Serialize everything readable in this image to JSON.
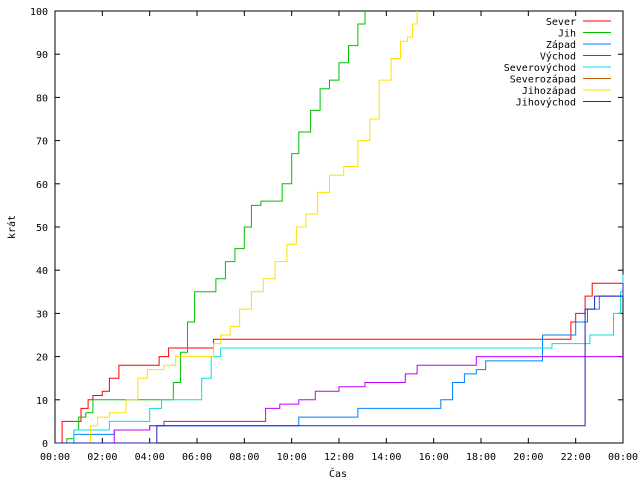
{
  "chart_data": {
    "type": "line",
    "title": "",
    "xlabel": "Čas",
    "ylabel": "krát",
    "xlim": [
      0,
      24
    ],
    "ylim": [
      0,
      100
    ],
    "grid": false,
    "legend_position": "top-right",
    "x_tick_labels": [
      "00:00",
      "02:00",
      "04:00",
      "06:00",
      "08:00",
      "10:00",
      "12:00",
      "14:00",
      "16:00",
      "18:00",
      "20:00",
      "22:00",
      "00:00"
    ],
    "y_tick_labels": [
      "0",
      "10",
      "20",
      "30",
      "40",
      "50",
      "60",
      "70",
      "80",
      "90",
      "100"
    ],
    "series": [
      {
        "name": "Sever",
        "color": "#ff0000",
        "points": [
          [
            0,
            0
          ],
          [
            0.3,
            5
          ],
          [
            0.9,
            5
          ],
          [
            1.1,
            8
          ],
          [
            1.4,
            10
          ],
          [
            1.6,
            11
          ],
          [
            2.0,
            12
          ],
          [
            2.3,
            15
          ],
          [
            2.7,
            18
          ],
          [
            4.2,
            18
          ],
          [
            4.4,
            20
          ],
          [
            4.8,
            22
          ],
          [
            6.5,
            22
          ],
          [
            6.7,
            24
          ],
          [
            21.5,
            24
          ],
          [
            21.8,
            28
          ],
          [
            22.0,
            30
          ],
          [
            22.4,
            34
          ],
          [
            22.7,
            37
          ],
          [
            23.7,
            37
          ],
          [
            24,
            39
          ]
        ]
      },
      {
        "name": "Jih",
        "color": "#00c000",
        "points": [
          [
            0,
            0
          ],
          [
            0.5,
            1
          ],
          [
            0.8,
            3
          ],
          [
            1.0,
            6
          ],
          [
            1.3,
            7
          ],
          [
            1.6,
            10
          ],
          [
            2.3,
            10
          ],
          [
            4.8,
            10
          ],
          [
            5.0,
            14
          ],
          [
            5.3,
            21
          ],
          [
            5.6,
            28
          ],
          [
            5.9,
            35
          ],
          [
            6.4,
            35
          ],
          [
            6.8,
            38
          ],
          [
            7.2,
            42
          ],
          [
            7.6,
            45
          ],
          [
            8.0,
            50
          ],
          [
            8.3,
            55
          ],
          [
            8.7,
            56
          ],
          [
            9.1,
            56
          ],
          [
            9.6,
            60
          ],
          [
            10.0,
            67
          ],
          [
            10.3,
            72
          ],
          [
            10.8,
            77
          ],
          [
            11.2,
            82
          ],
          [
            11.6,
            84
          ],
          [
            12.0,
            88
          ],
          [
            12.4,
            92
          ],
          [
            12.8,
            97
          ],
          [
            13.1,
            100
          ]
        ]
      },
      {
        "name": "Západ",
        "color": "#0080ff",
        "points": [
          [
            0,
            0
          ],
          [
            0.6,
            0
          ],
          [
            0.8,
            2
          ],
          [
            1.7,
            2
          ],
          [
            2.5,
            3
          ],
          [
            3.5,
            3
          ],
          [
            4.0,
            4
          ],
          [
            9.8,
            4
          ],
          [
            10.3,
            6
          ],
          [
            12.3,
            6
          ],
          [
            12.8,
            8
          ],
          [
            16.0,
            8
          ],
          [
            16.3,
            10
          ],
          [
            16.8,
            14
          ],
          [
            17.3,
            16
          ],
          [
            17.8,
            17
          ],
          [
            18.2,
            19
          ],
          [
            20.2,
            19
          ],
          [
            20.6,
            25
          ],
          [
            21.7,
            25
          ],
          [
            22.0,
            28
          ],
          [
            22.5,
            31
          ],
          [
            23.0,
            34
          ],
          [
            24,
            34
          ]
        ]
      },
      {
        "name": "Východ",
        "color": "#c000ff",
        "points": [
          [
            0,
            0
          ],
          [
            2.2,
            0
          ],
          [
            2.5,
            3
          ],
          [
            4.0,
            4
          ],
          [
            4.6,
            5
          ],
          [
            8.6,
            5
          ],
          [
            8.9,
            8
          ],
          [
            9.5,
            9
          ],
          [
            10.3,
            10
          ],
          [
            11.0,
            12
          ],
          [
            12.0,
            13
          ],
          [
            13.1,
            14
          ],
          [
            14.5,
            14
          ],
          [
            14.8,
            16
          ],
          [
            15.3,
            18
          ],
          [
            17.5,
            18
          ],
          [
            17.8,
            20
          ],
          [
            24,
            20
          ]
        ]
      },
      {
        "name": "Severovýchod",
        "color": "#00e0e0",
        "points": [
          [
            0,
            0
          ],
          [
            0.4,
            0
          ],
          [
            0.8,
            3
          ],
          [
            1.8,
            3
          ],
          [
            2.3,
            5
          ],
          [
            3.5,
            5
          ],
          [
            4.0,
            8
          ],
          [
            4.5,
            10
          ],
          [
            5.9,
            10
          ],
          [
            6.2,
            15
          ],
          [
            6.6,
            20
          ],
          [
            7.0,
            22
          ],
          [
            20.6,
            22
          ],
          [
            21.0,
            23
          ],
          [
            22.3,
            23
          ],
          [
            22.6,
            25
          ],
          [
            23.2,
            25
          ],
          [
            23.6,
            30
          ],
          [
            23.9,
            35
          ],
          [
            24,
            39
          ]
        ]
      },
      {
        "name": "Severozápad",
        "color": "#c06000",
        "points": []
      },
      {
        "name": "Jihozápad",
        "color": "#ffe000",
        "points": [
          [
            0,
            0
          ],
          [
            1.2,
            0
          ],
          [
            1.5,
            4
          ],
          [
            1.8,
            6
          ],
          [
            2.3,
            7
          ],
          [
            3.0,
            10
          ],
          [
            3.5,
            15
          ],
          [
            3.9,
            17
          ],
          [
            4.6,
            18
          ],
          [
            5.1,
            20
          ],
          [
            6.4,
            20
          ],
          [
            6.7,
            23
          ],
          [
            7.0,
            25
          ],
          [
            7.4,
            27
          ],
          [
            7.8,
            31
          ],
          [
            8.3,
            35
          ],
          [
            8.8,
            38
          ],
          [
            9.3,
            42
          ],
          [
            9.8,
            46
          ],
          [
            10.2,
            50
          ],
          [
            10.6,
            53
          ],
          [
            11.1,
            58
          ],
          [
            11.6,
            62
          ],
          [
            12.2,
            64
          ],
          [
            12.8,
            70
          ],
          [
            13.3,
            75
          ],
          [
            13.7,
            84
          ],
          [
            14.2,
            89
          ],
          [
            14.6,
            93
          ],
          [
            14.9,
            94
          ],
          [
            15.1,
            97
          ],
          [
            15.3,
            100
          ]
        ]
      },
      {
        "name": "Jihovýchod",
        "color": "#2020c0",
        "points": [
          [
            0,
            0
          ],
          [
            4.0,
            0
          ],
          [
            4.3,
            4
          ],
          [
            9.8,
            4
          ],
          [
            22.4,
            31
          ],
          [
            22.8,
            34
          ],
          [
            24,
            37
          ]
        ]
      }
    ]
  }
}
